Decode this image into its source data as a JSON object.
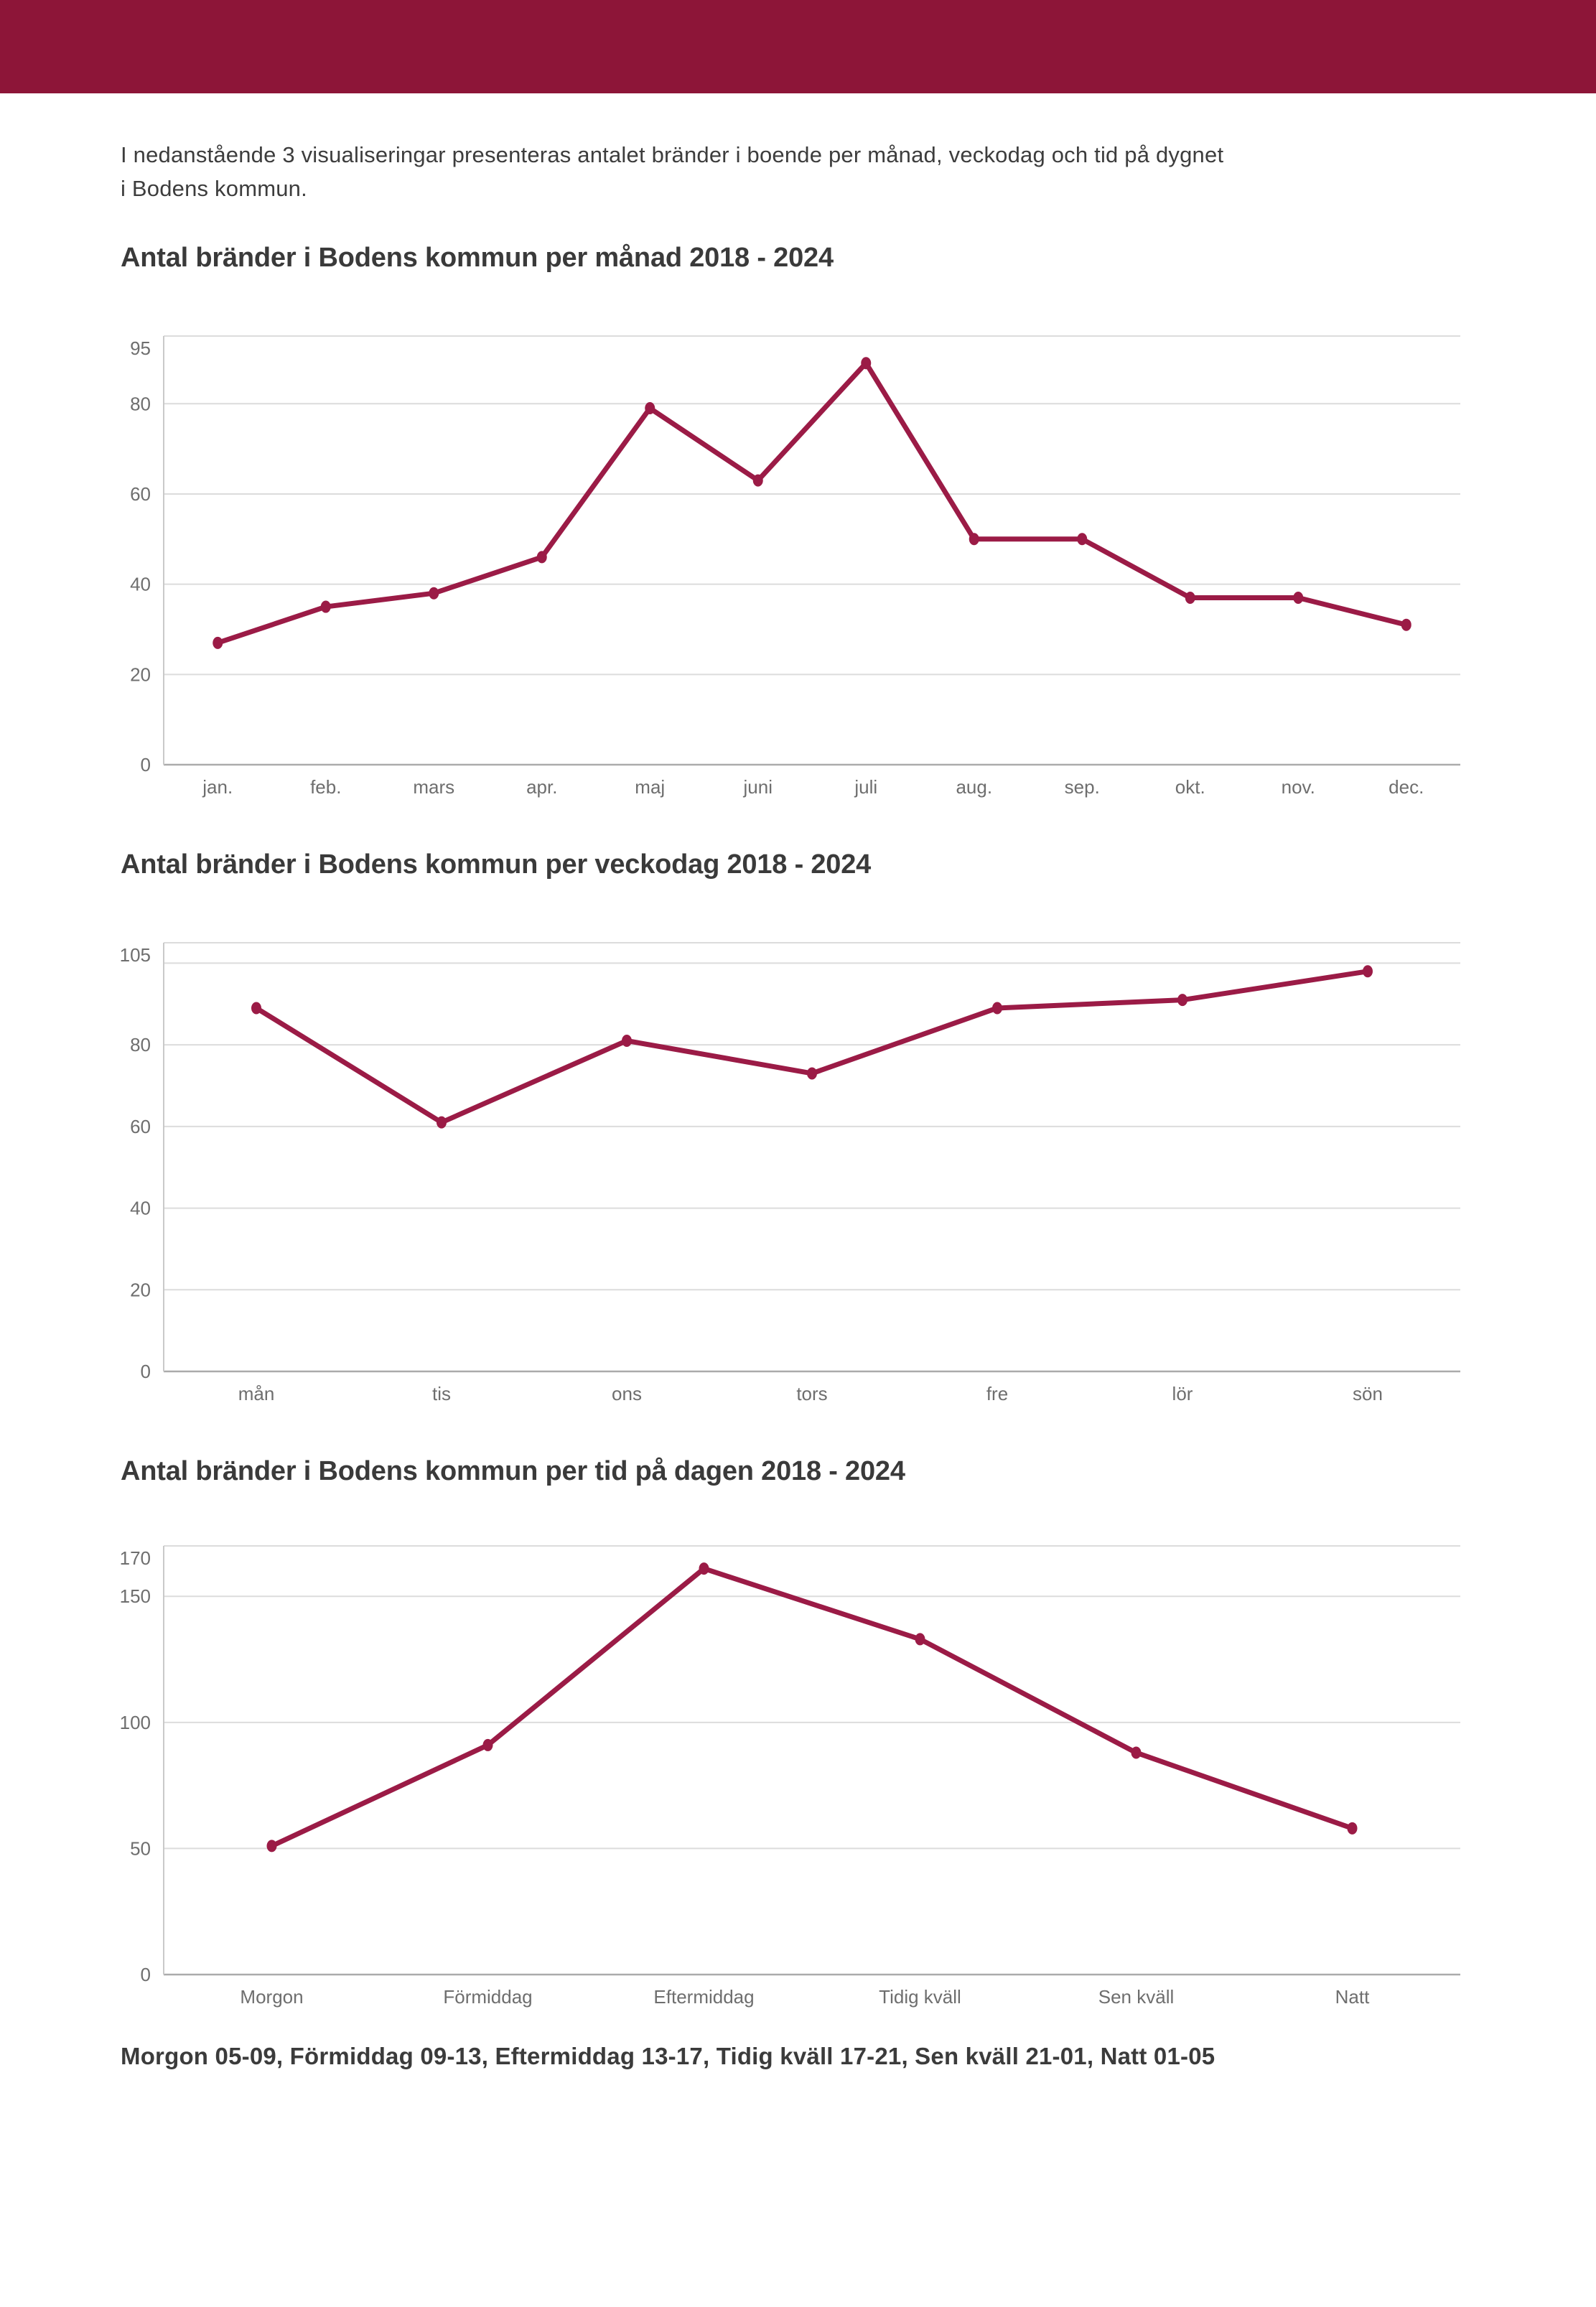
{
  "page": {
    "background": "#ffffff",
    "header_color": "#8D1538",
    "accent_color": "#9B1B46",
    "gridline_color": "#dcdcdc",
    "axis_color": "#ababab",
    "tick_text_color": "#6e6e6e"
  },
  "intro": {
    "line1": "I nedanstående 3 visualiseringar presenteras antalet bränder i boende per månad, veckodag och tid på dygnet",
    "line2": "i Bodens kommun."
  },
  "footer_note": "Morgon 05-09, Förmiddag 09-13, Eftermiddag 13-17, Tidig kväll 17-21, Sen kväll 21-01, Natt 01-05",
  "chart_data": [
    {
      "type": "line",
      "title": "Antal bränder i Bodens kommun per månad 2018 - 2024",
      "categories": [
        "jan.",
        "feb.",
        "mars",
        "apr.",
        "maj",
        "juni",
        "juli",
        "aug.",
        "sep.",
        "okt.",
        "nov.",
        "dec."
      ],
      "values": [
        27,
        35,
        38,
        46,
        79,
        63,
        89,
        50,
        50,
        37,
        37,
        31
      ],
      "xlabel": "",
      "ylabel": "",
      "ylim": [
        0,
        95
      ],
      "y_ticks": [
        95,
        80,
        60,
        40,
        20,
        0
      ],
      "extra_gridlines": [],
      "grid": true,
      "legend": "none",
      "line_color": "#9B1B46"
    },
    {
      "type": "line",
      "title": "Antal bränder i Bodens kommun per veckodag 2018 - 2024",
      "categories": [
        "mån",
        "tis",
        "ons",
        "tors",
        "fre",
        "lör",
        "sön"
      ],
      "values": [
        89,
        61,
        81,
        73,
        89,
        91,
        98
      ],
      "xlabel": "",
      "ylabel": "",
      "ylim": [
        0,
        105
      ],
      "y_ticks": [
        105,
        80,
        60,
        40,
        20,
        0
      ],
      "extra_gridlines": [
        100
      ],
      "grid": true,
      "legend": "none",
      "line_color": "#9B1B46"
    },
    {
      "type": "line",
      "title": "Antal bränder i Bodens kommun per tid på dagen 2018 - 2024",
      "categories": [
        "Morgon",
        "Förmiddag",
        "Eftermiddag",
        "Tidig kväll",
        "Sen kväll",
        "Natt"
      ],
      "values": [
        51,
        91,
        161,
        133,
        88,
        58
      ],
      "xlabel": "",
      "ylabel": "",
      "ylim": [
        0,
        170
      ],
      "y_ticks": [
        170,
        150,
        100,
        50,
        0
      ],
      "extra_gridlines": [],
      "grid": true,
      "legend": "none",
      "line_color": "#9B1B46"
    }
  ]
}
